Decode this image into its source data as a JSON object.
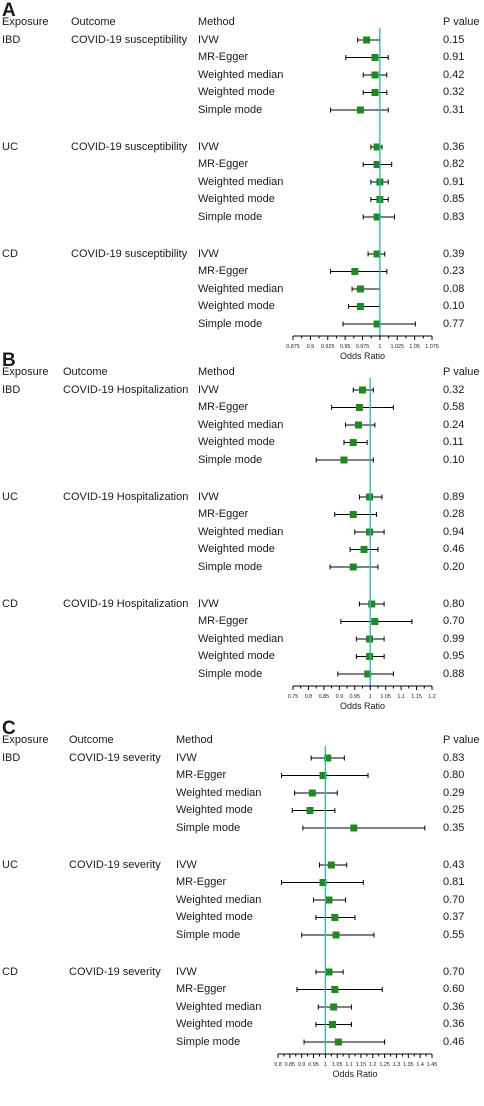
{
  "headers": {
    "exposure": "Exposure",
    "outcome": "Outcome",
    "method": "Method",
    "pvalue": "P value"
  },
  "style": {
    "point_color": "#1f8a1f",
    "ref_line_color": "#2bb5b0",
    "line_color": "#000000"
  },
  "chart_data": [
    {
      "panel": "A",
      "type": "forest",
      "xlabel": "Odds Ratio",
      "reference_line": 1,
      "xlim": [
        0.875,
        1.075
      ],
      "ticks": [
        "0.875",
        "0.9",
        "0.925",
        "0.95",
        "0.975",
        "1",
        "1.025",
        "1.05",
        "1.075"
      ],
      "groups": [
        {
          "exposure": "IBD",
          "outcome": "COVID-19 susceptibility",
          "rows": [
            {
              "method": "IVW",
              "or": 0.981,
              "lo": 0.968,
              "hi": 1.0,
              "p": "0.15"
            },
            {
              "method": "MR-Egger",
              "or": 0.993,
              "lo": 0.951,
              "hi": 1.012,
              "p": "0.91"
            },
            {
              "method": "Weighted median",
              "or": 0.993,
              "lo": 0.976,
              "hi": 1.01,
              "p": "0.42"
            },
            {
              "method": "Weighted mode",
              "or": 0.993,
              "lo": 0.976,
              "hi": 1.01,
              "p": "0.32"
            },
            {
              "method": "Simple mode",
              "or": 0.972,
              "lo": 0.929,
              "hi": 1.012,
              "p": "0.31"
            }
          ]
        },
        {
          "exposure": "UC",
          "outcome": "COVID-19 susceptibility",
          "rows": [
            {
              "method": "IVW",
              "or": 0.996,
              "lo": 0.987,
              "hi": 1.003,
              "p": "0.36"
            },
            {
              "method": "MR-Egger",
              "or": 0.996,
              "lo": 0.976,
              "hi": 1.017,
              "p": "0.82"
            },
            {
              "method": "Weighted median",
              "or": 1.0,
              "lo": 0.987,
              "hi": 1.012,
              "p": "0.91"
            },
            {
              "method": "Weighted mode",
              "or": 1.0,
              "lo": 0.987,
              "hi": 1.012,
              "p": "0.85"
            },
            {
              "method": "Simple mode",
              "or": 0.996,
              "lo": 0.976,
              "hi": 1.021,
              "p": "0.83"
            }
          ]
        },
        {
          "exposure": "CD",
          "outcome": "COVID-19 susceptibility",
          "rows": [
            {
              "method": "IVW",
              "or": 0.996,
              "lo": 0.983,
              "hi": 1.007,
              "p": "0.39"
            },
            {
              "method": "MR-Egger",
              "or": 0.964,
              "lo": 0.929,
              "hi": 1.01,
              "p": "0.23"
            },
            {
              "method": "Weighted median",
              "or": 0.972,
              "lo": 0.96,
              "hi": 1.0,
              "p": "0.08"
            },
            {
              "method": "Weighted mode",
              "or": 0.972,
              "lo": 0.955,
              "hi": 1.0,
              "p": "0.10"
            },
            {
              "method": "Simple mode",
              "or": 0.996,
              "lo": 0.947,
              "hi": 1.051,
              "p": "0.77"
            }
          ]
        }
      ]
    },
    {
      "panel": "B",
      "type": "forest",
      "xlabel": "Odds Ratio",
      "reference_line": 1,
      "xlim": [
        0.75,
        1.2
      ],
      "ticks": [
        "0.75",
        "0.8",
        "0.85",
        "0.9",
        "0.95",
        "1",
        "1.05",
        "1.1",
        "1.15",
        "1.2"
      ],
      "groups": [
        {
          "exposure": "IBD",
          "outcome": "COVID-19 Hospitalization",
          "rows": [
            {
              "method": "IVW",
              "or": 0.975,
              "lo": 0.945,
              "hi": 1.01,
              "p": "0.32"
            },
            {
              "method": "MR-Egger",
              "or": 0.965,
              "lo": 0.875,
              "hi": 1.075,
              "p": "0.58"
            },
            {
              "method": "Weighted median",
              "or": 0.962,
              "lo": 0.92,
              "hi": 1.015,
              "p": "0.24"
            },
            {
              "method": "Weighted mode",
              "or": 0.945,
              "lo": 0.915,
              "hi": 0.99,
              "p": "0.11"
            },
            {
              "method": "Simple mode",
              "or": 0.915,
              "lo": 0.825,
              "hi": 1.01,
              "p": "0.10"
            }
          ]
        },
        {
          "exposure": "UC",
          "outcome": "COVID-19 Hospitalization",
          "rows": [
            {
              "method": "IVW",
              "or": 0.998,
              "lo": 0.965,
              "hi": 1.038,
              "p": "0.89"
            },
            {
              "method": "MR-Egger",
              "or": 0.945,
              "lo": 0.885,
              "hi": 1.02,
              "p": "0.28"
            },
            {
              "method": "Weighted median",
              "or": 0.998,
              "lo": 0.95,
              "hi": 1.045,
              "p": "0.94"
            },
            {
              "method": "Weighted mode",
              "or": 0.98,
              "lo": 0.935,
              "hi": 1.025,
              "p": "0.46"
            },
            {
              "method": "Simple mode",
              "or": 0.945,
              "lo": 0.87,
              "hi": 1.025,
              "p": "0.20"
            }
          ]
        },
        {
          "exposure": "CD",
          "outcome": "COVID-19 Hospitalization",
          "rows": [
            {
              "method": "IVW",
              "or": 1.005,
              "lo": 0.965,
              "hi": 1.045,
              "p": "0.80"
            },
            {
              "method": "MR-Egger",
              "or": 1.015,
              "lo": 0.905,
              "hi": 1.135,
              "p": "0.70"
            },
            {
              "method": "Weighted median",
              "or": 0.998,
              "lo": 0.955,
              "hi": 1.045,
              "p": "0.99"
            },
            {
              "method": "Weighted mode",
              "or": 0.998,
              "lo": 0.955,
              "hi": 1.045,
              "p": "0.95"
            },
            {
              "method": "Simple mode",
              "or": 0.992,
              "lo": 0.895,
              "hi": 1.075,
              "p": "0.88"
            }
          ]
        }
      ]
    },
    {
      "panel": "C",
      "type": "forest",
      "xlabel": "Odds Ratio",
      "reference_line": 1,
      "xlim": [
        0.8,
        1.45
      ],
      "ticks": [
        "0.8",
        "0.85",
        "0.9",
        "0.95",
        "1",
        "1.05",
        "1.1",
        "1.15",
        "1.2",
        "1.25",
        "1.3",
        "1.35",
        "1.4",
        "1.45"
      ],
      "groups": [
        {
          "exposure": "IBD",
          "outcome": "COVID-19 severity",
          "rows": [
            {
              "method": "IVW",
              "or": 1.01,
              "lo": 0.94,
              "hi": 1.08,
              "p": "0.83"
            },
            {
              "method": "MR-Egger",
              "or": 0.99,
              "lo": 0.815,
              "hi": 1.18,
              "p": "0.80"
            },
            {
              "method": "Weighted median",
              "or": 0.945,
              "lo": 0.87,
              "hi": 1.05,
              "p": "0.29"
            },
            {
              "method": "Weighted mode",
              "or": 0.935,
              "lo": 0.86,
              "hi": 1.04,
              "p": "0.25"
            },
            {
              "method": "Simple mode",
              "or": 1.12,
              "lo": 0.905,
              "hi": 1.42,
              "p": "0.35"
            }
          ]
        },
        {
          "exposure": "UC",
          "outcome": "COVID-19 severity",
          "rows": [
            {
              "method": "IVW",
              "or": 1.025,
              "lo": 0.975,
              "hi": 1.09,
              "p": "0.43"
            },
            {
              "method": "MR-Egger",
              "or": 0.99,
              "lo": 0.815,
              "hi": 1.16,
              "p": "0.81"
            },
            {
              "method": "Weighted median",
              "or": 1.015,
              "lo": 0.95,
              "hi": 1.085,
              "p": "0.70"
            },
            {
              "method": "Weighted mode",
              "or": 1.04,
              "lo": 0.96,
              "hi": 1.125,
              "p": "0.37"
            },
            {
              "method": "Simple mode",
              "or": 1.045,
              "lo": 0.9,
              "hi": 1.205,
              "p": "0.55"
            }
          ]
        },
        {
          "exposure": "CD",
          "outcome": "COVID-19 severity",
          "rows": [
            {
              "method": "IVW",
              "or": 1.015,
              "lo": 0.96,
              "hi": 1.075,
              "p": "0.70"
            },
            {
              "method": "MR-Egger",
              "or": 1.04,
              "lo": 0.88,
              "hi": 1.24,
              "p": "0.60"
            },
            {
              "method": "Weighted median",
              "or": 1.035,
              "lo": 0.97,
              "hi": 1.11,
              "p": "0.36"
            },
            {
              "method": "Weighted mode",
              "or": 1.03,
              "lo": 0.96,
              "hi": 1.11,
              "p": "0.36"
            },
            {
              "method": "Simple mode",
              "or": 1.055,
              "lo": 0.91,
              "hi": 1.25,
              "p": "0.46"
            }
          ]
        }
      ]
    }
  ]
}
